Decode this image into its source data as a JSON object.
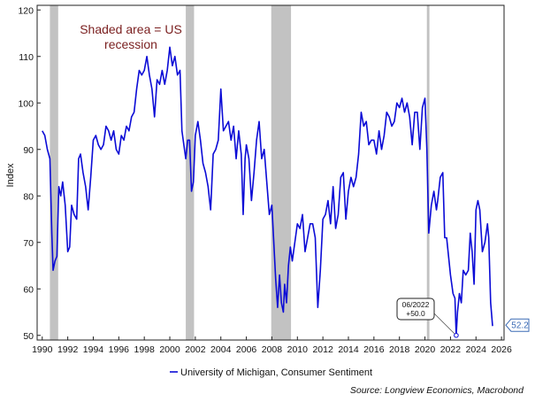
{
  "chart_data": {
    "type": "line",
    "title": "",
    "xlabel": "",
    "ylabel": "Index",
    "xlim": [
      1989.6,
      2026.2
    ],
    "ylim": [
      49,
      121
    ],
    "x_ticks": [
      1990,
      1992,
      1994,
      1996,
      1998,
      2000,
      2002,
      2004,
      2006,
      2008,
      2010,
      2012,
      2014,
      2016,
      2018,
      2020,
      2022,
      2024,
      2026
    ],
    "x_tick_labels": [
      "1990",
      "1992",
      "1994",
      "1996",
      "1998",
      "2000",
      "2002",
      "2004",
      "2006",
      "2008",
      "2010",
      "2012",
      "2014",
      "2016",
      "2018",
      "2020",
      "2022",
      "2024",
      "2026"
    ],
    "y_ticks": [
      50,
      60,
      70,
      80,
      90,
      100,
      110,
      120
    ],
    "y_tick_labels": [
      "50",
      "60",
      "70",
      "80",
      "90",
      "100",
      "110",
      "120"
    ],
    "recessions": [
      {
        "start": 1990.6,
        "end": 1991.25
      },
      {
        "start": 2001.25,
        "end": 2001.9
      },
      {
        "start": 2007.95,
        "end": 2009.5
      },
      {
        "start": 2020.15,
        "end": 2020.35
      }
    ],
    "series": [
      {
        "name": "University of Michigan, Consumer Sentiment",
        "color": "#0b0bd6",
        "points": [
          [
            1990.0,
            94
          ],
          [
            1990.2,
            93
          ],
          [
            1990.4,
            90
          ],
          [
            1990.6,
            88
          ],
          [
            1990.75,
            72
          ],
          [
            1990.85,
            64
          ],
          [
            1991.0,
            66
          ],
          [
            1991.15,
            67
          ],
          [
            1991.3,
            82
          ],
          [
            1991.45,
            80
          ],
          [
            1991.6,
            83
          ],
          [
            1991.8,
            78
          ],
          [
            1992.0,
            68
          ],
          [
            1992.15,
            69
          ],
          [
            1992.3,
            78
          ],
          [
            1992.5,
            76
          ],
          [
            1992.7,
            75
          ],
          [
            1992.85,
            88
          ],
          [
            1993.0,
            89
          ],
          [
            1993.2,
            85
          ],
          [
            1993.4,
            82
          ],
          [
            1993.6,
            77
          ],
          [
            1993.8,
            84
          ],
          [
            1994.0,
            92
          ],
          [
            1994.2,
            93
          ],
          [
            1994.4,
            91
          ],
          [
            1994.6,
            90
          ],
          [
            1994.8,
            91
          ],
          [
            1995.0,
            95
          ],
          [
            1995.2,
            94
          ],
          [
            1995.4,
            92
          ],
          [
            1995.6,
            94
          ],
          [
            1995.8,
            90
          ],
          [
            1996.0,
            89
          ],
          [
            1996.2,
            93
          ],
          [
            1996.4,
            92
          ],
          [
            1996.6,
            95
          ],
          [
            1996.8,
            94
          ],
          [
            1997.0,
            97
          ],
          [
            1997.2,
            98
          ],
          [
            1997.4,
            103
          ],
          [
            1997.6,
            107
          ],
          [
            1997.8,
            106
          ],
          [
            1998.0,
            107
          ],
          [
            1998.2,
            110
          ],
          [
            1998.4,
            106
          ],
          [
            1998.6,
            103
          ],
          [
            1998.8,
            97
          ],
          [
            1999.0,
            105
          ],
          [
            1999.2,
            104
          ],
          [
            1999.4,
            107
          ],
          [
            1999.6,
            104
          ],
          [
            1999.8,
            107
          ],
          [
            2000.0,
            112
          ],
          [
            2000.2,
            108
          ],
          [
            2000.4,
            110
          ],
          [
            2000.6,
            106
          ],
          [
            2000.8,
            107
          ],
          [
            2000.95,
            94
          ],
          [
            2001.1,
            91
          ],
          [
            2001.25,
            88
          ],
          [
            2001.4,
            92
          ],
          [
            2001.55,
            92
          ],
          [
            2001.7,
            81
          ],
          [
            2001.85,
            83
          ],
          [
            2002.0,
            93
          ],
          [
            2002.2,
            96
          ],
          [
            2002.4,
            92
          ],
          [
            2002.6,
            87
          ],
          [
            2002.8,
            85
          ],
          [
            2003.0,
            82
          ],
          [
            2003.2,
            77
          ],
          [
            2003.4,
            89
          ],
          [
            2003.6,
            90
          ],
          [
            2003.8,
            92
          ],
          [
            2004.0,
            103
          ],
          [
            2004.2,
            94
          ],
          [
            2004.4,
            95
          ],
          [
            2004.6,
            96
          ],
          [
            2004.8,
            92
          ],
          [
            2005.0,
            95
          ],
          [
            2005.2,
            88
          ],
          [
            2005.4,
            94
          ],
          [
            2005.6,
            89
          ],
          [
            2005.75,
            76
          ],
          [
            2005.9,
            88
          ],
          [
            2006.0,
            91
          ],
          [
            2006.2,
            88
          ],
          [
            2006.4,
            79
          ],
          [
            2006.6,
            85
          ],
          [
            2006.8,
            92
          ],
          [
            2007.0,
            96
          ],
          [
            2007.2,
            88
          ],
          [
            2007.4,
            90
          ],
          [
            2007.6,
            83
          ],
          [
            2007.8,
            76
          ],
          [
            2008.0,
            78
          ],
          [
            2008.15,
            70
          ],
          [
            2008.3,
            62
          ],
          [
            2008.45,
            56
          ],
          [
            2008.6,
            63
          ],
          [
            2008.75,
            57
          ],
          [
            2008.9,
            55
          ],
          [
            2009.0,
            61
          ],
          [
            2009.15,
            57
          ],
          [
            2009.3,
            65
          ],
          [
            2009.45,
            69
          ],
          [
            2009.6,
            66
          ],
          [
            2009.8,
            70
          ],
          [
            2010.0,
            74
          ],
          [
            2010.2,
            73
          ],
          [
            2010.4,
            76
          ],
          [
            2010.6,
            68
          ],
          [
            2010.8,
            71
          ],
          [
            2011.0,
            74
          ],
          [
            2011.2,
            74
          ],
          [
            2011.4,
            71
          ],
          [
            2011.6,
            56
          ],
          [
            2011.8,
            64
          ],
          [
            2012.0,
            75
          ],
          [
            2012.2,
            76
          ],
          [
            2012.4,
            79
          ],
          [
            2012.6,
            74
          ],
          [
            2012.8,
            82
          ],
          [
            2013.0,
            73
          ],
          [
            2013.2,
            76
          ],
          [
            2013.4,
            84
          ],
          [
            2013.6,
            85
          ],
          [
            2013.8,
            75
          ],
          [
            2014.0,
            81
          ],
          [
            2014.2,
            84
          ],
          [
            2014.4,
            82
          ],
          [
            2014.6,
            84
          ],
          [
            2014.8,
            89
          ],
          [
            2015.0,
            98
          ],
          [
            2015.2,
            95
          ],
          [
            2015.4,
            96
          ],
          [
            2015.6,
            91
          ],
          [
            2015.8,
            92
          ],
          [
            2016.0,
            92
          ],
          [
            2016.2,
            89
          ],
          [
            2016.4,
            94
          ],
          [
            2016.6,
            90
          ],
          [
            2016.8,
            93
          ],
          [
            2017.0,
            98
          ],
          [
            2017.2,
            97
          ],
          [
            2017.4,
            95
          ],
          [
            2017.6,
            96
          ],
          [
            2017.8,
            100
          ],
          [
            2018.0,
            99
          ],
          [
            2018.2,
            101
          ],
          [
            2018.4,
            98
          ],
          [
            2018.6,
            100
          ],
          [
            2018.8,
            97
          ],
          [
            2019.0,
            91
          ],
          [
            2019.2,
            98
          ],
          [
            2019.4,
            98
          ],
          [
            2019.6,
            90
          ],
          [
            2019.8,
            99
          ],
          [
            2020.0,
            101
          ],
          [
            2020.15,
            90
          ],
          [
            2020.3,
            72
          ],
          [
            2020.5,
            78
          ],
          [
            2020.7,
            81
          ],
          [
            2020.9,
            77
          ],
          [
            2021.0,
            79
          ],
          [
            2021.2,
            84
          ],
          [
            2021.4,
            85
          ],
          [
            2021.55,
            71
          ],
          [
            2021.7,
            71
          ],
          [
            2021.85,
            67
          ],
          [
            2022.0,
            63
          ],
          [
            2022.2,
            59
          ],
          [
            2022.35,
            58
          ],
          [
            2022.45,
            50
          ],
          [
            2022.55,
            55
          ],
          [
            2022.7,
            59
          ],
          [
            2022.85,
            57
          ],
          [
            2023.0,
            64
          ],
          [
            2023.2,
            63
          ],
          [
            2023.4,
            64
          ],
          [
            2023.55,
            72
          ],
          [
            2023.7,
            68
          ],
          [
            2023.85,
            61
          ],
          [
            2024.0,
            77
          ],
          [
            2024.15,
            79
          ],
          [
            2024.3,
            77
          ],
          [
            2024.5,
            68
          ],
          [
            2024.7,
            70
          ],
          [
            2024.9,
            74
          ],
          [
            2025.0,
            71
          ],
          [
            2025.15,
            57
          ],
          [
            2025.3,
            52
          ]
        ]
      }
    ],
    "annotations": {
      "recession_note_line1": "Shaded area = US",
      "recession_note_line2": "recession",
      "callout_date": "06/2022",
      "callout_value": "+50.0",
      "callout_point": [
        2022.45,
        50
      ],
      "last_value_label": "52.2",
      "last_value": 52.2
    },
    "legend": {
      "label": "University of Michigan, Consumer Sentiment",
      "position": "bottom-center"
    },
    "source": "Source: Longview Economics, Macrobond"
  }
}
